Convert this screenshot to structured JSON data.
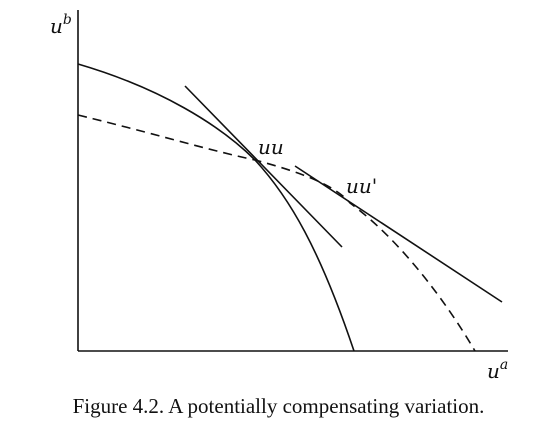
{
  "figure": {
    "y_axis_label": "u",
    "y_axis_sup": "b",
    "x_axis_label": "u",
    "x_axis_sup": "a",
    "point_uu": "uu",
    "point_uu_prime": "uu'",
    "caption": "Figure 4.2. A potentially compensating variation.",
    "curves": {
      "solid_frontier": "solid concave utility possibility curve",
      "dashed_frontier": "dashed utility possibility curve",
      "tangent_uu": "tangent line at uu",
      "tangent_uu_prime": "tangent line at uu'"
    }
  }
}
